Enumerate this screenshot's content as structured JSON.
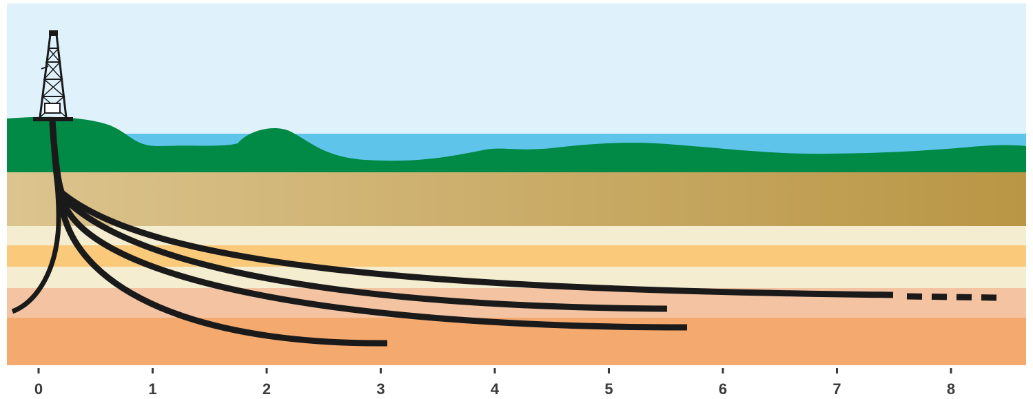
{
  "axis": {
    "ticks": [
      "0",
      "1",
      "2",
      "3",
      "4",
      "5",
      "6",
      "7",
      "8"
    ]
  },
  "colors": {
    "sky": "#dff1fb",
    "water": "#5ec4ea",
    "land": "#008a45",
    "layer_tan_left": "#dcc48e",
    "layer_tan_right": "#b99645",
    "layer_cream": "#f4edcf",
    "layer_gold": "#fbc97a",
    "layer_peach": "#f4c4a2",
    "layer_orange": "#f4a96e",
    "well": "#1a1a1a"
  },
  "icons": [
    "drilling-rig-icon"
  ]
}
